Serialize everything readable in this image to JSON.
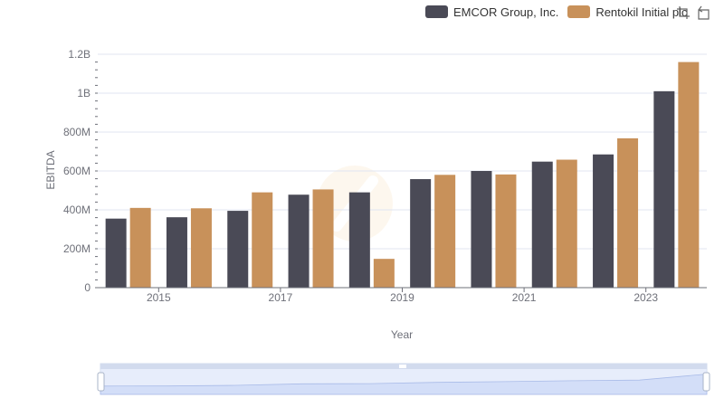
{
  "legend": [
    {
      "name": "EMCOR Group, Inc.",
      "color": "#4a4a56"
    },
    {
      "name": "Rentokil Initial plc",
      "color": "#c8915a"
    }
  ],
  "toolbox": {
    "icons": [
      "zoom-select-icon",
      "zoom-reset-icon"
    ]
  },
  "chart_data": {
    "type": "bar",
    "xlabel": "Year",
    "ylabel": "EBITDA",
    "categories": [
      "2014",
      "2015",
      "2016",
      "2017",
      "2018",
      "2019",
      "2020",
      "2021",
      "2022",
      "2023"
    ],
    "x_tick_labels": [
      "2015",
      "2017",
      "2019",
      "2021",
      "2023"
    ],
    "y_tick_labels": [
      "0",
      "200M",
      "400M",
      "600M",
      "800M",
      "1B",
      "1.2B"
    ],
    "ylim": [
      0,
      1200000000
    ],
    "grid": true,
    "legend_position": "top-right",
    "series": [
      {
        "name": "EMCOR Group, Inc.",
        "color": "#4a4a56",
        "values": [
          355000000,
          362000000,
          395000000,
          478000000,
          490000000,
          558000000,
          600000000,
          648000000,
          685000000,
          1010000000
        ]
      },
      {
        "name": "Rentokil Initial plc",
        "color": "#c8915a",
        "values": [
          410000000,
          408000000,
          490000000,
          505000000,
          148000000,
          580000000,
          582000000,
          658000000,
          768000000,
          1160000000
        ]
      }
    ]
  }
}
